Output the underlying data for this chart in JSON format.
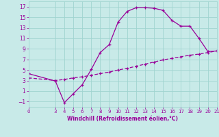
{
  "xlabel": "Windchill (Refroidissement éolien,°C)",
  "bg_color": "#c8eae8",
  "grid_color": "#a0d4d0",
  "line_color": "#990099",
  "xlim": [
    0,
    21
  ],
  "ylim": [
    -2,
    18
  ],
  "xticks": [
    0,
    3,
    4,
    5,
    6,
    7,
    8,
    9,
    10,
    11,
    12,
    13,
    14,
    15,
    16,
    17,
    18,
    19,
    20,
    21
  ],
  "yticks": [
    -1,
    1,
    3,
    5,
    7,
    9,
    11,
    13,
    15,
    17
  ],
  "curve1_x": [
    0,
    3,
    4,
    5,
    6,
    7,
    8,
    9,
    10,
    11,
    12,
    13,
    14,
    15,
    16,
    17,
    18,
    19,
    20,
    21
  ],
  "curve1_y": [
    4.3,
    2.9,
    -1.2,
    0.5,
    2.2,
    5.1,
    8.3,
    9.8,
    14.1,
    16.1,
    16.8,
    16.8,
    16.7,
    16.3,
    14.4,
    13.3,
    13.3,
    11.0,
    8.5,
    8.6
  ],
  "curve2_x": [
    0,
    3,
    4,
    5,
    6,
    7,
    8,
    9,
    10,
    11,
    12,
    13,
    14,
    15,
    16,
    17,
    18,
    19,
    20,
    21
  ],
  "curve2_y": [
    3.5,
    3.0,
    3.2,
    3.5,
    3.7,
    4.0,
    4.3,
    4.6,
    5.0,
    5.3,
    5.7,
    6.1,
    6.5,
    6.9,
    7.2,
    7.5,
    7.8,
    8.0,
    8.3,
    8.6
  ]
}
